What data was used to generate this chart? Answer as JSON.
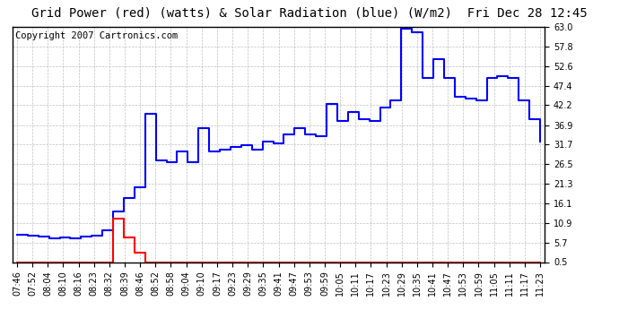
{
  "title": "Grid Power (red) (watts) & Solar Radiation (blue) (W/m2)  Fri Dec 28 12:45",
  "copyright": "Copyright 2007 Cartronics.com",
  "background_color": "#ffffff",
  "plot_bg_color": "#ffffff",
  "grid_color": "#b0b0b0",
  "xlabels": [
    "07:46",
    "07:52",
    "08:04",
    "08:10",
    "08:16",
    "08:23",
    "08:32",
    "08:39",
    "08:46",
    "08:52",
    "08:58",
    "09:04",
    "09:10",
    "09:17",
    "09:23",
    "09:29",
    "09:35",
    "09:41",
    "09:47",
    "09:53",
    "09:59",
    "10:05",
    "10:11",
    "10:17",
    "10:23",
    "10:29",
    "10:35",
    "10:41",
    "10:47",
    "10:53",
    "10:59",
    "11:05",
    "11:11",
    "11:17",
    "11:23"
  ],
  "yticks": [
    0.5,
    5.7,
    10.9,
    16.1,
    21.3,
    26.5,
    31.7,
    36.9,
    42.2,
    47.4,
    52.6,
    57.8,
    63.0
  ],
  "ylim": [
    0.5,
    63.0
  ],
  "title_fontsize": 10,
  "tick_fontsize": 7,
  "copyright_fontsize": 7.5,
  "n_ticks": 35,
  "blue_y": [
    7.8,
    7.5,
    7.3,
    6.9,
    7.1,
    6.8,
    7.3,
    7.5,
    9.0,
    14.0,
    17.5,
    20.5,
    40.0,
    27.5,
    27.0,
    30.0,
    27.0,
    36.0,
    30.0,
    30.5,
    31.0,
    31.5,
    30.5,
    32.5,
    32.0,
    34.5,
    36.0,
    34.5,
    34.0,
    42.5,
    38.0,
    40.5,
    38.5,
    38.0,
    41.5,
    43.5,
    62.5,
    61.5,
    49.5,
    54.5,
    49.5,
    44.5,
    44.0,
    43.5,
    49.5,
    50.0,
    49.5,
    43.5,
    38.5,
    32.5
  ],
  "red_y": [
    0.5,
    0.5,
    0.5,
    0.5,
    0.5,
    0.5,
    0.5,
    0.5,
    0.5,
    12.0,
    7.0,
    3.0,
    0.5,
    0.5,
    0.5,
    0.5,
    0.5,
    0.5,
    0.5,
    0.5,
    0.5,
    0.5,
    0.5,
    0.5,
    0.5,
    0.5,
    0.5,
    0.5,
    0.5,
    0.5,
    0.5,
    0.5,
    0.5,
    0.5,
    0.5,
    0.5,
    0.5,
    0.5,
    0.5,
    0.5,
    0.5,
    0.5,
    0.5,
    0.5,
    0.5,
    0.5,
    0.5,
    0.5,
    0.5,
    0.5
  ]
}
